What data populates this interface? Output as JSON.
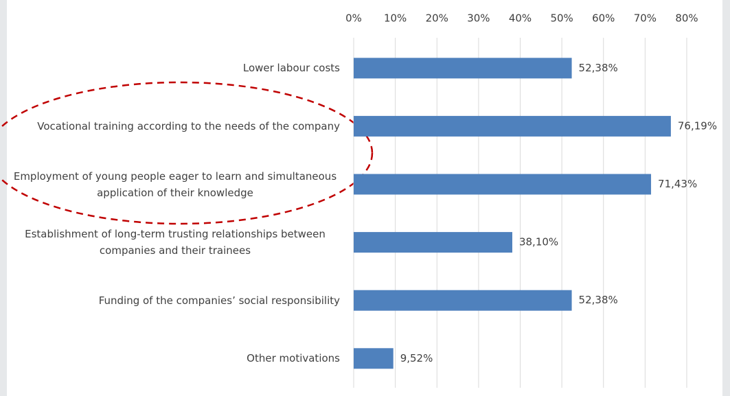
{
  "chart_data": {
    "type": "bar",
    "orientation": "horizontal",
    "categories": [
      "Lower labour costs",
      "Vocational training according to the needs of the company",
      "Employment of young people eager to learn and simultaneous application of their knowledge",
      "Establishment of long-term trusting relationships between companies and their trainees",
      "Funding of the companies’ social responsibility",
      "Other motivations"
    ],
    "values": [
      52.38,
      76.19,
      71.43,
      38.1,
      52.38,
      9.52
    ],
    "value_labels": [
      "52,38%",
      "76,19%",
      "71,43%",
      "38,10%",
      "52,38%",
      "9,52%"
    ],
    "color": "#4f81bd",
    "xlim": [
      0,
      80
    ],
    "xticks": [
      {
        "value": 0,
        "label": "0%"
      },
      {
        "value": 10,
        "label": "10%"
      },
      {
        "value": 20,
        "label": "20%"
      },
      {
        "value": 30,
        "label": "30%"
      },
      {
        "value": 40,
        "label": "40%"
      },
      {
        "value": 50,
        "label": "50%"
      },
      {
        "value": 60,
        "label": "60%"
      },
      {
        "value": 70,
        "label": "70%"
      },
      {
        "value": 80,
        "label": "80%"
      }
    ],
    "grid": true
  }
}
